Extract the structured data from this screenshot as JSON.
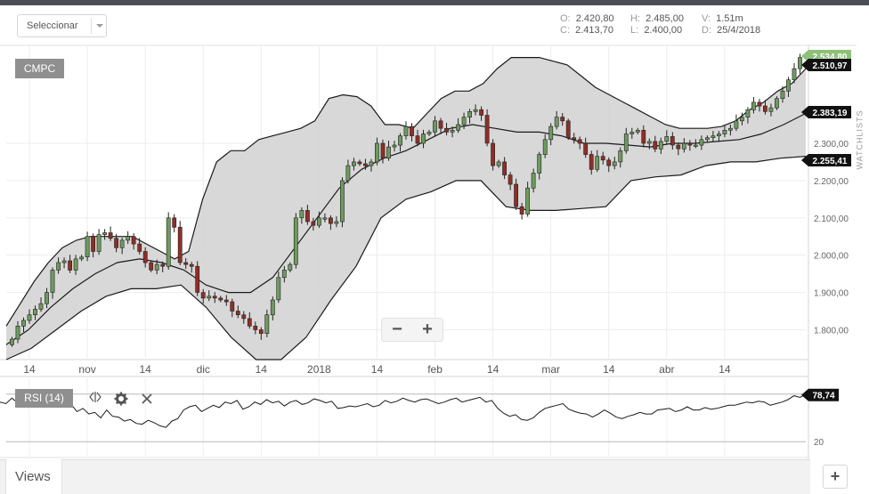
{
  "toolbar": {
    "select_label": "Seleccionar"
  },
  "ohlc": {
    "o_label": "O:",
    "o_value": "2.420,80",
    "c_label": "C:",
    "c_value": "2.413,70",
    "h_label": "H:",
    "h_value": "2.485,00",
    "l_label": "L:",
    "l_value": "2.400,00",
    "v_label": "V:",
    "v_value": "1.51m",
    "d_label": "D:",
    "d_value": "25/4/2018"
  },
  "zoom": {
    "minus": "−",
    "plus": "+"
  },
  "sidebar": {
    "watchlists": "WATCHLISTS"
  },
  "views": {
    "label": "Views",
    "add": "+"
  },
  "colors": {
    "up_candle": "#6e9a5e",
    "down_candle": "#8f2e26",
    "band_fill": "#d4d4d4",
    "badge_dark": "#111111",
    "badge_green": "#8cc17a",
    "label_gray": "#8f8f8f"
  },
  "chart_data": [
    {
      "type": "candlestick",
      "symbol": "CMPC",
      "indicator": "Bollinger Bands",
      "y_ticks": [
        1800,
        1900,
        2000,
        2100,
        2200,
        2300
      ],
      "y_tick_labels": [
        "1.800,00",
        "1.900,00",
        "2.000,00",
        "2.100,00",
        "2.200,00",
        "2.300,00"
      ],
      "ylim": [
        1720,
        2560
      ],
      "x_tick_labels": [
        "14",
        "nov",
        "14",
        "dic",
        "14",
        "2018",
        "14",
        "feb",
        "14",
        "mar",
        "14",
        "abr",
        "14"
      ],
      "grid": true,
      "price_badges": [
        {
          "label": "2.534,80",
          "value": 2534.8,
          "style": "green"
        },
        {
          "label": "2.510,97",
          "value": 2510.97,
          "style": "dark"
        },
        {
          "label": "2.383,19",
          "value": 2383.19,
          "style": "dark"
        },
        {
          "label": "2.255,41",
          "value": 2255.41,
          "style": "dark"
        }
      ],
      "close": [
        1775,
        1810,
        1825,
        1840,
        1855,
        1870,
        1900,
        1960,
        1980,
        1985,
        1960,
        1990,
        1995,
        2050,
        2010,
        2055,
        2060,
        2045,
        2020,
        2040,
        2050,
        2030,
        2010,
        1980,
        1960,
        1975,
        1970,
        2100,
        2075,
        1980,
        1975,
        1970,
        1900,
        1885,
        1890,
        1885,
        1880,
        1875,
        1850,
        1840,
        1830,
        1810,
        1800,
        1790,
        1840,
        1880,
        1940,
        1960,
        1975,
        2100,
        2120,
        2090,
        2080,
        2100,
        2100,
        2085,
        2090,
        2200,
        2240,
        2250,
        2245,
        2240,
        2250,
        2300,
        2260,
        2290,
        2295,
        2320,
        2345,
        2320,
        2300,
        2325,
        2330,
        2360,
        2340,
        2330,
        2335,
        2350,
        2370,
        2385,
        2390,
        2375,
        2300,
        2240,
        2250,
        2215,
        2190,
        2130,
        2110,
        2180,
        2220,
        2270,
        2310,
        2345,
        2370,
        2360,
        2315,
        2310,
        2300,
        2270,
        2230,
        2265,
        2255,
        2240,
        2250,
        2280,
        2325,
        2330,
        2335,
        2300,
        2305,
        2285,
        2305,
        2318,
        2295,
        2285,
        2300,
        2295,
        2295,
        2310,
        2315,
        2320,
        2325,
        2335,
        2340,
        2360,
        2370,
        2390,
        2410,
        2400,
        2385,
        2395,
        2420,
        2440,
        2470,
        2500,
        2530
      ],
      "upper_band": [
        1810,
        1870,
        1930,
        1980,
        2020,
        2040,
        2050,
        2050,
        2050,
        2050,
        2030,
        2010,
        1990,
        2010,
        2150,
        2250,
        2280,
        2280,
        2310,
        2320,
        2330,
        2340,
        2360,
        2420,
        2430,
        2425,
        2400,
        2350,
        2350,
        2340,
        2380,
        2420,
        2440,
        2440,
        2460,
        2500,
        2530,
        2530,
        2530,
        2520,
        2510,
        2480,
        2450,
        2430,
        2410,
        2390,
        2370,
        2350,
        2340,
        2340,
        2340,
        2345,
        2360,
        2390,
        2410,
        2440,
        2460,
        2500
      ],
      "middle_band": [
        1760,
        1800,
        1860,
        1910,
        1950,
        1980,
        1990,
        1980,
        1960,
        1920,
        1900,
        1900,
        1940,
        2020,
        2100,
        2180,
        2230,
        2260,
        2280,
        2310,
        2340,
        2350,
        2340,
        2330,
        2330,
        2320,
        2300,
        2300,
        2295,
        2290,
        2300,
        2300,
        2305,
        2310,
        2325,
        2350,
        2380
      ],
      "lower_band": [
        1720,
        1750,
        1800,
        1850,
        1890,
        1910,
        1910,
        1920,
        1860,
        1780,
        1720,
        1700,
        1780,
        1880,
        1970,
        2100,
        2150,
        2170,
        2200,
        2200,
        2130,
        2120,
        2120,
        2125,
        2130,
        2200,
        2210,
        2215,
        2240,
        2250,
        2250,
        2260,
        2265
      ]
    },
    {
      "type": "line",
      "title": "RSI (14)",
      "ylim": [
        0,
        100
      ],
      "y_ticks": [
        20
      ],
      "y_tick_labels": [
        "20"
      ],
      "last_value_label": "78,74",
      "values": [
        70,
        68,
        75,
        69,
        72,
        66,
        73,
        70,
        71,
        64,
        66,
        70,
        67,
        58,
        62,
        55,
        57,
        50,
        60,
        52,
        51,
        46,
        48,
        43,
        42,
        47,
        44,
        40,
        38,
        46,
        49,
        60,
        64,
        66,
        58,
        62,
        66,
        63,
        70,
        68,
        72,
        61,
        64,
        70,
        67,
        73,
        69,
        71,
        65,
        70,
        72,
        67,
        69,
        74,
        72,
        69,
        71,
        62,
        63,
        65,
        64,
        66,
        68,
        64,
        66,
        72,
        69,
        71,
        75,
        72,
        70,
        73,
        74,
        71,
        68,
        70,
        73,
        75,
        70,
        72,
        74,
        76,
        70,
        72,
        62,
        56,
        52,
        54,
        48,
        47,
        50,
        57,
        62,
        64,
        66,
        68,
        61,
        58,
        56,
        55,
        51,
        55,
        60,
        56,
        51,
        49,
        52,
        54,
        57,
        55,
        55,
        60,
        61,
        62,
        58,
        60,
        64,
        60,
        60,
        63,
        61,
        62,
        64,
        66,
        66,
        68,
        70,
        69,
        71,
        70,
        66,
        68,
        70,
        73,
        78,
        76,
        79
      ]
    }
  ]
}
